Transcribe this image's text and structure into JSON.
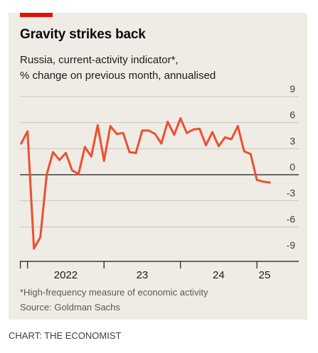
{
  "header": {
    "title": "Gravity strikes back",
    "subtitle_line1": "Russia, current-activity indicator*,",
    "subtitle_line2": "% change on previous month, annualised"
  },
  "footer": {
    "footnote": "*High-frequency measure of economic activity",
    "source": "Source: Goldman Sachs",
    "credit": "CHART: THE ECONOMIST"
  },
  "colors": {
    "accent": "#e3120b",
    "line": "#f04e2f",
    "panel": "#efece5"
  },
  "chart_data": {
    "type": "line",
    "y_axis_position": "right",
    "ylim": [
      -9,
      9
    ],
    "yticks": [
      9,
      6,
      3,
      0,
      -3,
      -6,
      -9
    ],
    "ytick_labels": [
      "9",
      "6",
      "3",
      "0",
      "-3",
      "-6",
      "-9"
    ],
    "xlim": [
      2021.9,
      2025.25
    ],
    "x_boundaries": [
      2022,
      2023,
      2024,
      2025
    ],
    "x_labels": [
      {
        "label": "2022",
        "at": 2022.5
      },
      {
        "label": "23",
        "at": 2023.5
      },
      {
        "label": "24",
        "at": 2024.5
      },
      {
        "label": "25",
        "at": 2025.1
      }
    ],
    "grid": true,
    "series": [
      {
        "x": [
          2021.917,
          2022.0,
          2022.083,
          2022.167,
          2022.25,
          2022.333,
          2022.417,
          2022.5,
          2022.583,
          2022.667,
          2022.75,
          2022.833,
          2022.917,
          2023.0,
          2023.083,
          2023.167,
          2023.25,
          2023.333,
          2023.417,
          2023.5,
          2023.583,
          2023.667,
          2023.75,
          2023.833,
          2023.917,
          2024.0,
          2024.083,
          2024.167,
          2024.25,
          2024.333,
          2024.417,
          2024.5,
          2024.583,
          2024.667,
          2024.75,
          2024.833,
          2024.917,
          2025.0,
          2025.083,
          2025.167
        ],
        "values": [
          3.6,
          5.0,
          -8.5,
          -7.2,
          0.0,
          2.6,
          1.7,
          2.5,
          0.5,
          0.1,
          3.2,
          2.1,
          5.7,
          1.6,
          5.6,
          4.7,
          4.8,
          2.6,
          2.5,
          5.1,
          5.1,
          4.7,
          3.6,
          6.1,
          4.6,
          6.5,
          4.8,
          5.2,
          5.3,
          3.4,
          4.9,
          3.3,
          4.3,
          4.1,
          5.6,
          2.7,
          2.4,
          -0.6,
          -0.8,
          -0.9
        ]
      }
    ]
  }
}
